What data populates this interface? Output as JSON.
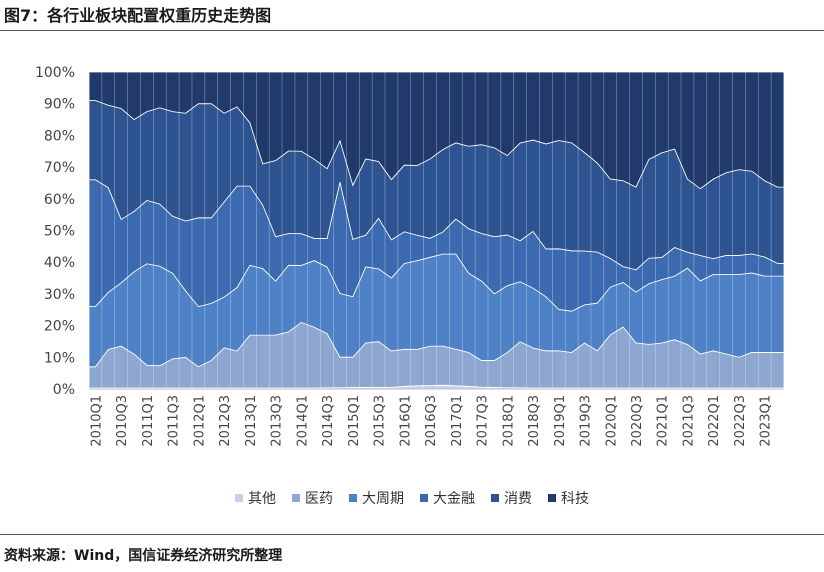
{
  "title": "图7：各行业板块配置权重历史走势图",
  "source": "资料来源：Wind，国信证券经济研究所整理",
  "chart_data": {
    "type": "area",
    "stacked": true,
    "ylim": [
      0,
      100
    ],
    "y_ticks": [
      "0%",
      "10%",
      "20%",
      "30%",
      "40%",
      "50%",
      "60%",
      "70%",
      "80%",
      "90%",
      "100%"
    ],
    "x_tick_labels": [
      "2010Q1",
      "2010Q3",
      "2011Q1",
      "2011Q3",
      "2012Q1",
      "2012Q3",
      "2013Q1",
      "2013Q3",
      "2014Q1",
      "2014Q3",
      "2015Q1",
      "2015Q3",
      "2016Q1",
      "2016Q3",
      "2017Q1",
      "2017Q3",
      "2018Q1",
      "2018Q3",
      "2019Q1",
      "2019Q3",
      "2020Q1",
      "2020Q3",
      "2021Q1",
      "2021Q3",
      "2022Q1",
      "2022Q3",
      "2023Q1"
    ],
    "categories": [
      "2010Q1",
      "2010Q2",
      "2010Q3",
      "2010Q4",
      "2011Q1",
      "2011Q2",
      "2011Q3",
      "2011Q4",
      "2012Q1",
      "2012Q2",
      "2012Q3",
      "2012Q4",
      "2013Q1",
      "2013Q2",
      "2013Q3",
      "2013Q4",
      "2014Q1",
      "2014Q2",
      "2014Q3",
      "2014Q4",
      "2015Q1",
      "2015Q2",
      "2015Q3",
      "2015Q4",
      "2016Q1",
      "2016Q2",
      "2016Q3",
      "2016Q4",
      "2017Q1",
      "2017Q2",
      "2017Q3",
      "2017Q4",
      "2018Q1",
      "2018Q2",
      "2018Q3",
      "2018Q4",
      "2019Q1",
      "2019Q2",
      "2019Q3",
      "2019Q4",
      "2020Q1",
      "2020Q2",
      "2020Q3",
      "2020Q4",
      "2021Q1",
      "2021Q2",
      "2021Q3",
      "2021Q4",
      "2022Q1",
      "2022Q2",
      "2022Q3",
      "2022Q4",
      "2023Q1",
      "2023Q2"
    ],
    "series": [
      {
        "name": "其他",
        "color": "#c2d2e8",
        "values": [
          0.3,
          0.3,
          0.3,
          0.3,
          0.3,
          0.3,
          0.3,
          0.3,
          0.3,
          0.3,
          0.3,
          0.3,
          0.3,
          0.3,
          0.3,
          0.3,
          0.3,
          0.3,
          0.4,
          0.4,
          0.5,
          0.5,
          0.5,
          0.5,
          0.8,
          1.0,
          1.1,
          1.2,
          1.0,
          0.8,
          0.6,
          0.5,
          0.4,
          0.4,
          0.3,
          0.3,
          0.3,
          0.3,
          0.3,
          0.3,
          0.3,
          0.3,
          0.3,
          0.3,
          0.3,
          0.3,
          0.3,
          0.3,
          0.3,
          0.3,
          0.3,
          0.3,
          0.3,
          0.3
        ]
      },
      {
        "name": "医药",
        "color": "#8ea7d1",
        "values": [
          6.7,
          12.2,
          13.2,
          10.7,
          7.2,
          7.2,
          9.2,
          9.7,
          6.7,
          8.7,
          12.7,
          11.7,
          16.7,
          16.7,
          16.7,
          17.7,
          20.7,
          19.2,
          17.1,
          9.6,
          9.5,
          14.0,
          14.5,
          11.5,
          11.7,
          11.5,
          12.4,
          12.3,
          11.5,
          10.7,
          8.4,
          8.5,
          11.1,
          14.6,
          12.7,
          11.7,
          11.7,
          11.2,
          14.2,
          11.7,
          16.7,
          19.2,
          14.2,
          13.7,
          14.2,
          15.2,
          13.7,
          10.7,
          11.7,
          10.7,
          9.7,
          11.2,
          11.2,
          11.2
        ]
      },
      {
        "name": "大周期",
        "color": "#4f81c7",
        "values": [
          19,
          18,
          20,
          26,
          32,
          32,
          27,
          21,
          19,
          18,
          16,
          20,
          22,
          21,
          17,
          21,
          18,
          21,
          21,
          20,
          19,
          24,
          23,
          23,
          27,
          28,
          28,
          29,
          30,
          25,
          25,
          21,
          21,
          19,
          19,
          17,
          13,
          13,
          12,
          15,
          15,
          14,
          16,
          19,
          20,
          20,
          24,
          23,
          24,
          25,
          26,
          25,
          24,
          24
        ]
      },
      {
        "name": "大金融",
        "color": "#3c6ab0",
        "values": [
          40,
          33,
          20,
          19,
          20,
          20,
          18,
          22,
          28,
          27,
          30,
          32,
          25,
          20,
          14,
          10,
          10,
          7,
          9,
          35,
          18,
          10,
          16,
          12,
          10,
          8,
          6,
          7,
          11,
          14,
          15,
          18,
          16,
          13,
          18,
          15,
          19,
          19,
          17,
          16,
          9,
          5,
          7,
          8,
          7,
          9,
          5,
          8,
          5,
          6,
          6,
          6,
          6,
          4
        ]
      },
      {
        "name": "消费",
        "color": "#2d5491",
        "values": [
          25,
          26,
          35,
          29,
          28,
          31,
          33,
          34,
          36,
          36,
          28,
          25,
          20,
          13,
          24,
          26,
          26,
          25,
          22,
          13,
          17,
          24,
          18,
          19,
          21,
          22,
          25,
          26,
          24,
          26,
          28,
          28,
          25,
          31,
          29,
          33,
          34,
          34,
          31,
          28,
          25,
          27,
          26,
          31,
          33,
          31,
          23,
          21,
          25,
          26,
          27,
          26,
          24,
          24
        ]
      },
      {
        "name": "科技",
        "color": "#1f3a6b",
        "values": [
          9,
          10.5,
          11.5,
          15,
          12.5,
          11.5,
          12.5,
          13,
          10,
          10,
          13,
          11,
          16,
          29,
          27.9,
          24.9,
          25,
          27.5,
          30.5,
          21.6,
          35.6,
          27.4,
          28.3,
          33.9,
          29.3,
          29.5,
          27.4,
          24.4,
          22.3,
          23.4,
          22.9,
          23.9,
          26.3,
          22.5,
          21.6,
          22.6,
          21.5,
          22.3,
          25.4,
          28.6,
          33.6,
          34.2,
          36.2,
          27.4,
          25.5,
          24.2,
          33.7,
          36.7,
          33.7,
          31.7,
          30.7,
          31.2,
          34.2,
          36.2
        ]
      }
    ],
    "legend_position": "bottom"
  }
}
